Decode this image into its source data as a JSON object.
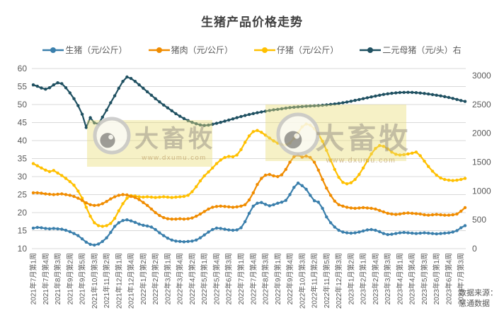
{
  "title": "生猪产品价格走势",
  "source": {
    "line1": "数据来源：",
    "line2": "慧通数据"
  },
  "palette": {
    "title_text": "#404040",
    "axis_text": "#595959",
    "gridline": "#d9d9d9",
    "watermark_box": "rgba(233,222,120,0.42)",
    "watermark_text": "rgba(145,140,128,0.5)",
    "watermark_url": "rgba(186,152,96,0.68)"
  },
  "chart_data": {
    "type": "line",
    "title": "生猪产品价格走势",
    "legend_position": "top",
    "grid": "horizontal",
    "x_label_every_n_points": 3,
    "x_labels": [
      "2021年7月第1周",
      "2021年7月第4周",
      "2021年8月第3周",
      "2021年9月第2周",
      "2021年9月第5周",
      "2021年10月第3周",
      "2021年11月第2周",
      "2021年12月第1周",
      "2021年12月第4周",
      "2022年1月第2周",
      "2022年2月第2周",
      "2022年3月第1周",
      "2022年3月第4周",
      "2022年4月第2周",
      "2022年5月第1周",
      "2022年5月第4周",
      "2022年6月第3周",
      "2022年7月第1周",
      "2022年7月第4周",
      "2022年8月第3周",
      "2022年9月第1周",
      "2022年9月第4周",
      "2022年10月第3周",
      "2022年11月第2周",
      "2022年11月第5周",
      "2022年12月第3周",
      "2023年1月第2周",
      "2023年2月第1周",
      "2023年2月第4周",
      "2023年3月第3周",
      "2023年4月第1周",
      "2023年4月第4周",
      "2023年5月第3周",
      "2023年6月第1周",
      "2023年6月第4周",
      "2023年7月第3周"
    ],
    "left_axis": {
      "min": 10,
      "max": 60,
      "step": 5,
      "ticks": [
        10,
        15,
        20,
        25,
        30,
        35,
        40,
        45,
        50,
        55,
        60
      ]
    },
    "right_axis": {
      "min": 0,
      "max": 3000,
      "step": 500,
      "ticks": [
        0,
        500,
        1000,
        1500,
        2000,
        2500,
        3000
      ]
    },
    "series": [
      {
        "name": "生猪（元/公斤）",
        "axis": "left",
        "color": "#3a7fac",
        "values": [
          15.7,
          15.9,
          15.8,
          15.6,
          15.5,
          15.6,
          15.5,
          15.4,
          15.1,
          14.7,
          14.2,
          13.6,
          12.7,
          11.8,
          11.2,
          11.0,
          11.3,
          12.0,
          13.0,
          14.5,
          16.2,
          17.2,
          17.8,
          18.0,
          17.7,
          17.3,
          16.8,
          16.5,
          16.3,
          16.0,
          15.3,
          14.4,
          13.6,
          12.9,
          12.4,
          12.1,
          12.0,
          11.9,
          12.0,
          12.1,
          12.4,
          13.0,
          13.8,
          14.6,
          15.3,
          15.7,
          15.6,
          15.4,
          15.2,
          15.1,
          15.2,
          15.8,
          17.5,
          19.8,
          21.8,
          22.6,
          22.8,
          22.3,
          21.9,
          22.2,
          22.6,
          22.9,
          23.4,
          25.0,
          27.0,
          28.2,
          27.5,
          26.5,
          24.8,
          23.3,
          22.9,
          21.2,
          18.8,
          17.2,
          16.0,
          15.1,
          14.6,
          14.4,
          14.3,
          14.4,
          14.6,
          14.9,
          15.2,
          15.3,
          15.1,
          14.7,
          14.2,
          13.9,
          14.0,
          14.2,
          14.4,
          14.5,
          14.4,
          14.3,
          14.2,
          14.3,
          14.4,
          14.3,
          14.2,
          14.1,
          14.2,
          14.3,
          14.4,
          14.6,
          15.0,
          15.8,
          16.4
        ]
      },
      {
        "name": "猪肉（元/公斤）",
        "axis": "left",
        "color": "#f08c00",
        "values": [
          25.5,
          25.5,
          25.4,
          25.2,
          25.1,
          25.0,
          25.1,
          25.2,
          25.0,
          24.8,
          24.5,
          24.0,
          23.4,
          22.7,
          22.2,
          22.0,
          22.1,
          22.5,
          23.1,
          23.8,
          24.4,
          24.8,
          25.0,
          24.9,
          24.5,
          24.2,
          23.6,
          22.8,
          22.0,
          21.0,
          20.0,
          19.2,
          18.6,
          18.3,
          18.2,
          18.2,
          18.3,
          18.2,
          18.3,
          18.5,
          19.0,
          19.6,
          20.3,
          21.0,
          21.5,
          21.7,
          21.8,
          21.7,
          21.6,
          21.5,
          21.6,
          21.8,
          22.2,
          23.5,
          25.5,
          27.8,
          29.5,
          30.4,
          30.6,
          30.2,
          30.0,
          30.5,
          32.0,
          34.0,
          35.5,
          36.0,
          35.4,
          35.7,
          35.3,
          34.0,
          31.8,
          29.2,
          26.8,
          24.8,
          23.2,
          22.2,
          21.8,
          21.5,
          21.3,
          21.2,
          21.3,
          21.4,
          21.3,
          21.2,
          21.0,
          20.6,
          20.2,
          19.8,
          19.6,
          19.5,
          19.6,
          19.8,
          19.9,
          19.8,
          19.7,
          19.6,
          19.4,
          19.3,
          19.4,
          19.5,
          19.4,
          19.3,
          19.3,
          19.4,
          19.6,
          20.4,
          21.4
        ]
      },
      {
        "name": "仔猪（元/公斤）",
        "axis": "left",
        "color": "#ffc000",
        "values": [
          33.6,
          33.0,
          32.4,
          31.8,
          31.4,
          31.7,
          31.0,
          30.3,
          29.5,
          28.6,
          27.6,
          26.0,
          24.0,
          21.5,
          19.0,
          17.2,
          16.4,
          16.2,
          16.4,
          17.0,
          18.4,
          20.5,
          22.5,
          24.0,
          24.7,
          24.6,
          24.4,
          24.3,
          24.4,
          24.3,
          24.2,
          24.3,
          24.4,
          24.3,
          24.2,
          24.3,
          24.4,
          24.5,
          24.8,
          25.8,
          27.2,
          28.8,
          30.2,
          31.3,
          32.4,
          33.6,
          34.6,
          35.3,
          35.6,
          35.5,
          36.0,
          37.5,
          39.5,
          41.3,
          42.5,
          42.8,
          42.3,
          41.5,
          40.7,
          39.9,
          39.3,
          38.9,
          38.8,
          39.3,
          40.6,
          42.2,
          43.8,
          44.6,
          44.3,
          43.3,
          41.8,
          39.8,
          37.3,
          34.6,
          32.0,
          29.8,
          28.4,
          28.0,
          28.3,
          29.2,
          30.6,
          32.4,
          34.4,
          36.3,
          37.8,
          38.6,
          38.4,
          37.7,
          36.8,
          36.2,
          36.0,
          36.1,
          36.3,
          36.5,
          36.8,
          35.8,
          34.3,
          32.8,
          31.5,
          30.4,
          29.6,
          29.2,
          29.0,
          28.9,
          29.0,
          29.2,
          29.5
        ]
      },
      {
        "name": "二元母猪（元/头）右",
        "axis": "right",
        "color": "#1f5061",
        "values": [
          2840,
          2815,
          2785,
          2765,
          2790,
          2840,
          2875,
          2860,
          2790,
          2700,
          2600,
          2480,
          2330,
          2100,
          2270,
          2180,
          2160,
          2280,
          2400,
          2530,
          2650,
          2780,
          2900,
          2975,
          2950,
          2900,
          2840,
          2780,
          2720,
          2660,
          2600,
          2545,
          2490,
          2440,
          2390,
          2340,
          2295,
          2255,
          2220,
          2190,
          2165,
          2145,
          2135,
          2142,
          2155,
          2172,
          2190,
          2210,
          2230,
          2250,
          2270,
          2290,
          2308,
          2325,
          2341,
          2356,
          2370,
          2383,
          2395,
          2406,
          2415,
          2425,
          2435,
          2445,
          2452,
          2458,
          2463,
          2468,
          2472,
          2476,
          2480,
          2486,
          2492,
          2500,
          2508,
          2518,
          2530,
          2542,
          2556,
          2570,
          2585,
          2600,
          2615,
          2630,
          2645,
          2660,
          2673,
          2684,
          2693,
          2700,
          2706,
          2709,
          2710,
          2708,
          2704,
          2698,
          2690,
          2681,
          2671,
          2660,
          2648,
          2635,
          2620,
          2604,
          2586,
          2568,
          2552
        ]
      }
    ],
    "watermark": {
      "brand": "大畜牧",
      "url": "www.dxumu.com"
    }
  }
}
